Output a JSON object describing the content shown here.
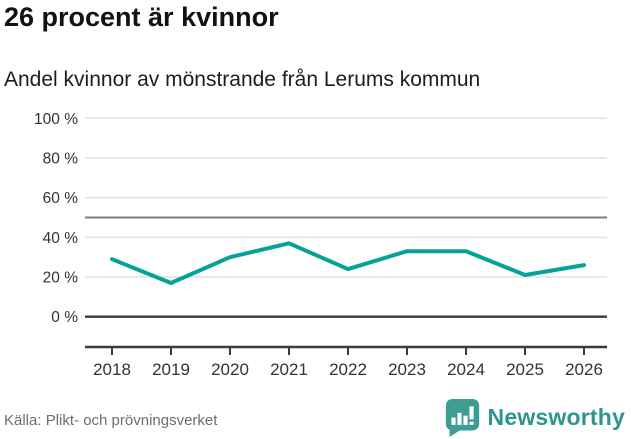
{
  "header": {
    "title": "26 procent är kvinnor",
    "subtitle": "Andel kvinnor av mönstrande från Lerums kommun"
  },
  "chart_data": {
    "type": "line",
    "x": [
      2018,
      2019,
      2020,
      2021,
      2022,
      2023,
      2024,
      2025,
      2026
    ],
    "series": [
      {
        "name": "Andel kvinnor av mönstrande, Lerums kommun",
        "values": [
          29,
          17,
          30,
          37,
          24,
          33,
          33,
          21,
          26
        ]
      }
    ],
    "title": "26 procent är kvinnor",
    "subtitle": "Andel kvinnor av mönstrande från Lerums kommun",
    "xlabel": "",
    "ylabel": "",
    "ylim": [
      0,
      100
    ],
    "yticks": [
      0,
      20,
      40,
      60,
      80,
      100
    ],
    "ytick_suffix": " %",
    "reference_line": 50,
    "grid": "horizontal",
    "legend": "none",
    "line_color": "#07a296"
  },
  "footer": {
    "source": "Källa: Plikt- och prövningsverket",
    "logo_text": "Newsworthy"
  },
  "colors": {
    "accent": "#07a296",
    "grid": "#e0e0e0",
    "reference": "#7d7d7d",
    "axis": "#3a3a3a",
    "tick_label": "#333333",
    "muted_text": "#6c6c71",
    "logo_bubble": "#3d9c94",
    "logo_text": "#2d968c"
  }
}
